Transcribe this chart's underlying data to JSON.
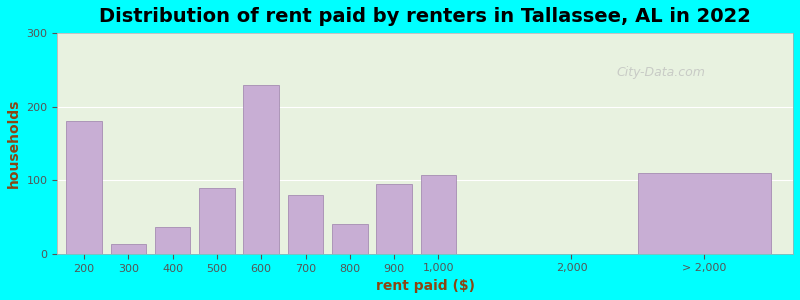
{
  "title": "Distribution of rent paid by renters in Tallassee, AL in 2022",
  "xlabel": "rent paid ($)",
  "ylabel": "households",
  "background_color": "#00FFFF",
  "plot_bg_gradient_top": "#f0f5e8",
  "plot_bg_gradient_bottom": "#e8f5e8",
  "bar_color": "#c8aed4",
  "bar_edge_color": "#9b7faa",
  "categories": [
    "200",
    "300",
    "400",
    "500",
    "600",
    "700",
    "800",
    "900",
    "1,000",
    "2,000",
    "> 2,000"
  ],
  "values": [
    180,
    13,
    37,
    90,
    230,
    80,
    40,
    95,
    107,
    0,
    110
  ],
  "ylim": [
    0,
    300
  ],
  "yticks": [
    0,
    100,
    200,
    300
  ],
  "watermark": "City-Data.com",
  "title_fontsize": 14,
  "axis_label_fontsize": 10,
  "tick_label_fontsize": 8
}
